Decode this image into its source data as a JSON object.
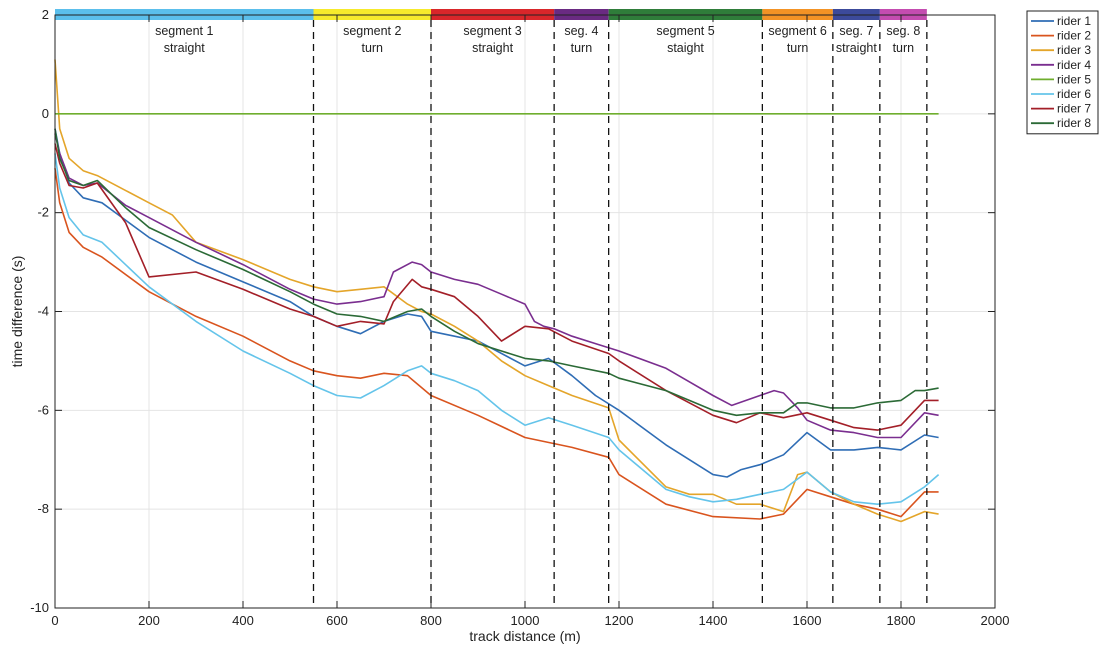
{
  "chart_data": {
    "type": "line",
    "xlabel": "track distance (m)",
    "ylabel": "time difference (s)",
    "xlim": [
      0,
      2000
    ],
    "ylim": [
      -10,
      2
    ],
    "xticks": [
      "0",
      "200",
      "400",
      "600",
      "800",
      "1000",
      "1200",
      "1400",
      "1600",
      "1800",
      "2000"
    ],
    "yticks": [
      "2",
      "0",
      "-2",
      "-4",
      "-6",
      "-8",
      "-10"
    ],
    "grid": true,
    "legend_position": "outside-top-right",
    "segments": [
      {
        "label1": "segment 1",
        "label2": "straight",
        "start": 0,
        "end": 550,
        "color": "#5bbfec"
      },
      {
        "label1": "segment 2",
        "label2": "turn",
        "start": 550,
        "end": 800,
        "color": "#f6ea2c"
      },
      {
        "label1": "segment 3",
        "label2": "straight",
        "start": 800,
        "end": 1062,
        "color": "#d9262a"
      },
      {
        "label1": "seg. 4",
        "label2": "turn",
        "start": 1062,
        "end": 1178,
        "color": "#6a2a82"
      },
      {
        "label1": "segment  5",
        "label2": "staight",
        "start": 1178,
        "end": 1505,
        "color": "#2f7d3a"
      },
      {
        "label1": "segment 6",
        "label2": "turn",
        "start": 1505,
        "end": 1655,
        "color": "#f39325"
      },
      {
        "label1": "seg. 7",
        "label2": "straight",
        "start": 1655,
        "end": 1755,
        "color": "#3c4a9b"
      },
      {
        "label1": "seg. 8",
        "label2": "turn",
        "start": 1755,
        "end": 1855,
        "color": "#c44cb0"
      }
    ],
    "boundaries": [
      550,
      800,
      1062,
      1178,
      1505,
      1655,
      1755,
      1855
    ],
    "series": [
      {
        "name": "rider 1",
        "color": "#2f6db5",
        "x": [
          0,
          10,
          30,
          60,
          100,
          200,
          300,
          400,
          500,
          550,
          600,
          650,
          700,
          750,
          780,
          800,
          850,
          900,
          1000,
          1050,
          1100,
          1150,
          1200,
          1300,
          1400,
          1430,
          1460,
          1500,
          1550,
          1600,
          1650,
          1700,
          1750,
          1800,
          1850,
          1880
        ],
        "y": [
          -0.3,
          -0.8,
          -1.4,
          -1.7,
          -1.8,
          -2.5,
          -3.0,
          -3.4,
          -3.8,
          -4.1,
          -4.3,
          -4.45,
          -4.2,
          -4.05,
          -4.1,
          -4.4,
          -4.5,
          -4.6,
          -5.1,
          -4.95,
          -5.3,
          -5.7,
          -6.0,
          -6.7,
          -7.3,
          -7.35,
          -7.2,
          -7.1,
          -6.9,
          -6.45,
          -6.8,
          -6.8,
          -6.75,
          -6.8,
          -6.5,
          -6.55
        ]
      },
      {
        "name": "rider 2",
        "color": "#d9541e",
        "x": [
          0,
          10,
          30,
          60,
          100,
          200,
          300,
          400,
          500,
          550,
          600,
          650,
          700,
          750,
          800,
          900,
          1000,
          1100,
          1178,
          1200,
          1300,
          1400,
          1500,
          1550,
          1600,
          1650,
          1700,
          1750,
          1800,
          1850,
          1880
        ],
        "y": [
          -1.1,
          -1.8,
          -2.4,
          -2.7,
          -2.9,
          -3.6,
          -4.1,
          -4.5,
          -5.0,
          -5.2,
          -5.3,
          -5.35,
          -5.25,
          -5.3,
          -5.7,
          -6.1,
          -6.55,
          -6.75,
          -6.95,
          -7.3,
          -7.9,
          -8.15,
          -8.2,
          -8.1,
          -7.6,
          -7.75,
          -7.9,
          -8.0,
          -8.15,
          -7.65,
          -7.65
        ]
      },
      {
        "name": "rider 3",
        "color": "#e4a52a",
        "x": [
          0,
          10,
          30,
          60,
          90,
          150,
          200,
          250,
          300,
          400,
          500,
          550,
          600,
          650,
          700,
          750,
          780,
          800,
          850,
          900,
          950,
          1000,
          1050,
          1100,
          1178,
          1200,
          1300,
          1350,
          1400,
          1450,
          1500,
          1550,
          1580,
          1600,
          1650,
          1700,
          1750,
          1800,
          1850,
          1880
        ],
        "y": [
          1.1,
          -0.3,
          -0.9,
          -1.15,
          -1.25,
          -1.55,
          -1.8,
          -2.05,
          -2.6,
          -2.95,
          -3.35,
          -3.5,
          -3.6,
          -3.55,
          -3.5,
          -3.85,
          -4.0,
          -4.05,
          -4.3,
          -4.6,
          -5.0,
          -5.3,
          -5.5,
          -5.7,
          -5.95,
          -6.6,
          -7.55,
          -7.7,
          -7.7,
          -7.9,
          -7.9,
          -8.05,
          -7.3,
          -7.25,
          -7.65,
          -7.9,
          -8.1,
          -8.25,
          -8.05,
          -8.1
        ]
      },
      {
        "name": "rider 4",
        "color": "#7a2e8f",
        "x": [
          0,
          10,
          30,
          60,
          90,
          150,
          200,
          300,
          400,
          500,
          550,
          600,
          650,
          700,
          720,
          760,
          780,
          800,
          850,
          900,
          950,
          1000,
          1020,
          1040,
          1062,
          1100,
          1150,
          1200,
          1300,
          1400,
          1440,
          1500,
          1530,
          1550,
          1580,
          1600,
          1650,
          1700,
          1750,
          1800,
          1850,
          1880
        ],
        "y": [
          -0.4,
          -0.8,
          -1.3,
          -1.45,
          -1.4,
          -1.85,
          -2.1,
          -2.6,
          -3.05,
          -3.55,
          -3.75,
          -3.85,
          -3.8,
          -3.7,
          -3.2,
          -3.0,
          -3.05,
          -3.2,
          -3.35,
          -3.45,
          -3.65,
          -3.85,
          -4.2,
          -4.3,
          -4.35,
          -4.5,
          -4.65,
          -4.8,
          -5.15,
          -5.7,
          -5.9,
          -5.7,
          -5.6,
          -5.65,
          -5.95,
          -6.2,
          -6.4,
          -6.45,
          -6.55,
          -6.55,
          -6.05,
          -6.1
        ]
      },
      {
        "name": "rider 5",
        "color": "#6fae2e",
        "x": [
          0,
          1880
        ],
        "y": [
          0,
          0
        ]
      },
      {
        "name": "rider 6",
        "color": "#64c4ea",
        "x": [
          0,
          10,
          30,
          60,
          100,
          200,
          300,
          400,
          500,
          550,
          600,
          650,
          700,
          750,
          780,
          800,
          850,
          900,
          950,
          1000,
          1050,
          1100,
          1178,
          1200,
          1300,
          1350,
          1400,
          1450,
          1500,
          1550,
          1600,
          1650,
          1700,
          1750,
          1800,
          1850,
          1880
        ],
        "y": [
          -0.8,
          -1.5,
          -2.1,
          -2.45,
          -2.6,
          -3.5,
          -4.2,
          -4.8,
          -5.25,
          -5.5,
          -5.7,
          -5.75,
          -5.5,
          -5.2,
          -5.1,
          -5.25,
          -5.4,
          -5.6,
          -6.0,
          -6.3,
          -6.15,
          -6.3,
          -6.55,
          -6.8,
          -7.6,
          -7.75,
          -7.85,
          -7.8,
          -7.7,
          -7.6,
          -7.25,
          -7.65,
          -7.85,
          -7.9,
          -7.85,
          -7.55,
          -7.3
        ]
      },
      {
        "name": "rider 7",
        "color": "#a31f28",
        "x": [
          0,
          10,
          30,
          60,
          90,
          150,
          200,
          300,
          400,
          500,
          550,
          600,
          650,
          700,
          720,
          760,
          780,
          800,
          850,
          900,
          950,
          1000,
          1050,
          1100,
          1178,
          1200,
          1300,
          1400,
          1450,
          1500,
          1550,
          1600,
          1650,
          1700,
          1750,
          1800,
          1850,
          1880
        ],
        "y": [
          -0.6,
          -1.0,
          -1.45,
          -1.5,
          -1.4,
          -2.2,
          -3.3,
          -3.2,
          -3.55,
          -3.95,
          -4.1,
          -4.3,
          -4.2,
          -4.25,
          -3.8,
          -3.35,
          -3.5,
          -3.55,
          -3.7,
          -4.1,
          -4.6,
          -4.3,
          -4.35,
          -4.6,
          -4.85,
          -5.0,
          -5.6,
          -6.1,
          -6.25,
          -6.05,
          -6.15,
          -6.05,
          -6.2,
          -6.35,
          -6.4,
          -6.3,
          -5.8,
          -5.8
        ]
      },
      {
        "name": "rider 8",
        "color": "#2b6a36",
        "x": [
          0,
          10,
          30,
          60,
          90,
          150,
          200,
          300,
          400,
          500,
          550,
          600,
          650,
          700,
          750,
          780,
          800,
          850,
          900,
          950,
          1000,
          1050,
          1100,
          1178,
          1200,
          1300,
          1400,
          1450,
          1500,
          1550,
          1580,
          1600,
          1650,
          1700,
          1750,
          1800,
          1830,
          1850,
          1880
        ],
        "y": [
          -0.3,
          -0.9,
          -1.35,
          -1.45,
          -1.35,
          -1.9,
          -2.3,
          -2.75,
          -3.15,
          -3.6,
          -3.85,
          -4.05,
          -4.1,
          -4.2,
          -4.0,
          -3.95,
          -4.1,
          -4.4,
          -4.65,
          -4.8,
          -4.95,
          -5.0,
          -5.1,
          -5.25,
          -5.35,
          -5.6,
          -6.0,
          -6.1,
          -6.05,
          -6.05,
          -5.85,
          -5.85,
          -5.95,
          -5.95,
          -5.85,
          -5.8,
          -5.6,
          -5.6,
          -5.55
        ]
      }
    ]
  }
}
